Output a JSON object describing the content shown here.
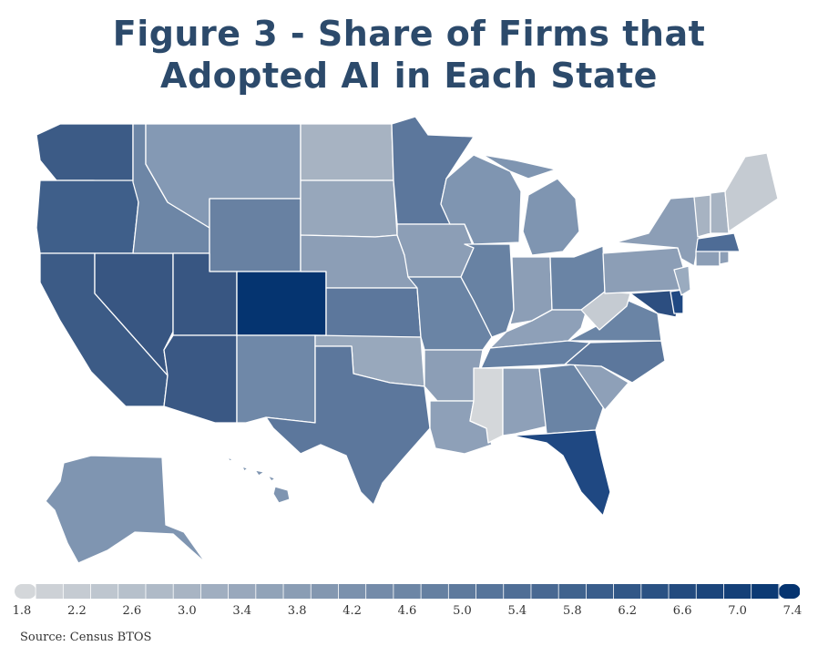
{
  "title": {
    "line1": "Figure 3 - Share of Firms that",
    "line2": "Adopted AI in Each State"
  },
  "map": {
    "type": "choropleth",
    "region": "United States",
    "measure": "Share of firms that adopted AI (%)",
    "color_low": "#d4d7da",
    "color_high": "#053470",
    "states": [
      {
        "state": "Washington",
        "level": "high"
      },
      {
        "state": "Oregon",
        "level": "high"
      },
      {
        "state": "California",
        "level": "high"
      },
      {
        "state": "Nevada",
        "level": "high"
      },
      {
        "state": "Idaho",
        "level": "medium"
      },
      {
        "state": "Montana",
        "level": "medium-low"
      },
      {
        "state": "Wyoming",
        "level": "medium"
      },
      {
        "state": "Utah",
        "level": "high"
      },
      {
        "state": "Arizona",
        "level": "high"
      },
      {
        "state": "Colorado",
        "level": "highest"
      },
      {
        "state": "New Mexico",
        "level": "medium"
      },
      {
        "state": "North Dakota",
        "level": "low"
      },
      {
        "state": "South Dakota",
        "level": "medium-low"
      },
      {
        "state": "Nebraska",
        "level": "medium-low"
      },
      {
        "state": "Kansas",
        "level": "medium"
      },
      {
        "state": "Oklahoma",
        "level": "medium-low"
      },
      {
        "state": "Texas",
        "level": "medium"
      },
      {
        "state": "Minnesota",
        "level": "medium"
      },
      {
        "state": "Iowa",
        "level": "medium-low"
      },
      {
        "state": "Missouri",
        "level": "medium"
      },
      {
        "state": "Arkansas",
        "level": "medium-low"
      },
      {
        "state": "Louisiana",
        "level": "medium-low"
      },
      {
        "state": "Wisconsin",
        "level": "medium-low"
      },
      {
        "state": "Illinois",
        "level": "medium"
      },
      {
        "state": "Michigan",
        "level": "medium-low"
      },
      {
        "state": "Indiana",
        "level": "medium-low"
      },
      {
        "state": "Ohio",
        "level": "medium"
      },
      {
        "state": "Kentucky",
        "level": "medium-low"
      },
      {
        "state": "Tennessee",
        "level": "medium"
      },
      {
        "state": "Mississippi",
        "level": "lowest"
      },
      {
        "state": "Alabama",
        "level": "medium-low"
      },
      {
        "state": "Georgia",
        "level": "medium"
      },
      {
        "state": "Florida",
        "level": "high"
      },
      {
        "state": "South Carolina",
        "level": "medium-low"
      },
      {
        "state": "North Carolina",
        "level": "medium"
      },
      {
        "state": "Virginia",
        "level": "medium"
      },
      {
        "state": "West Virginia",
        "level": "lowest"
      },
      {
        "state": "Pennsylvania",
        "level": "medium-low"
      },
      {
        "state": "New York",
        "level": "medium-low"
      },
      {
        "state": "Maryland",
        "level": "high"
      },
      {
        "state": "Delaware",
        "level": "high"
      },
      {
        "state": "New Jersey",
        "level": "medium-low"
      },
      {
        "state": "Connecticut",
        "level": "medium-low"
      },
      {
        "state": "Rhode Island",
        "level": "medium-low"
      },
      {
        "state": "Massachusetts",
        "level": "medium-high"
      },
      {
        "state": "Vermont",
        "level": "low"
      },
      {
        "state": "New Hampshire",
        "level": "low"
      },
      {
        "state": "Maine",
        "level": "lowest"
      },
      {
        "state": "Alaska",
        "level": "medium-low"
      },
      {
        "state": "Hawaii",
        "level": "medium"
      }
    ]
  },
  "legend": {
    "min": 1.8,
    "max": 7.4,
    "step": 0.2,
    "tick_labels": [
      "1.8",
      "2.2",
      "2.6",
      "3.0",
      "3.4",
      "3.8",
      "4.2",
      "4.6",
      "5.0",
      "5.4",
      "5.8",
      "6.2",
      "6.6",
      "7.0",
      "7.4"
    ]
  },
  "source": "Source: Census BTOS"
}
